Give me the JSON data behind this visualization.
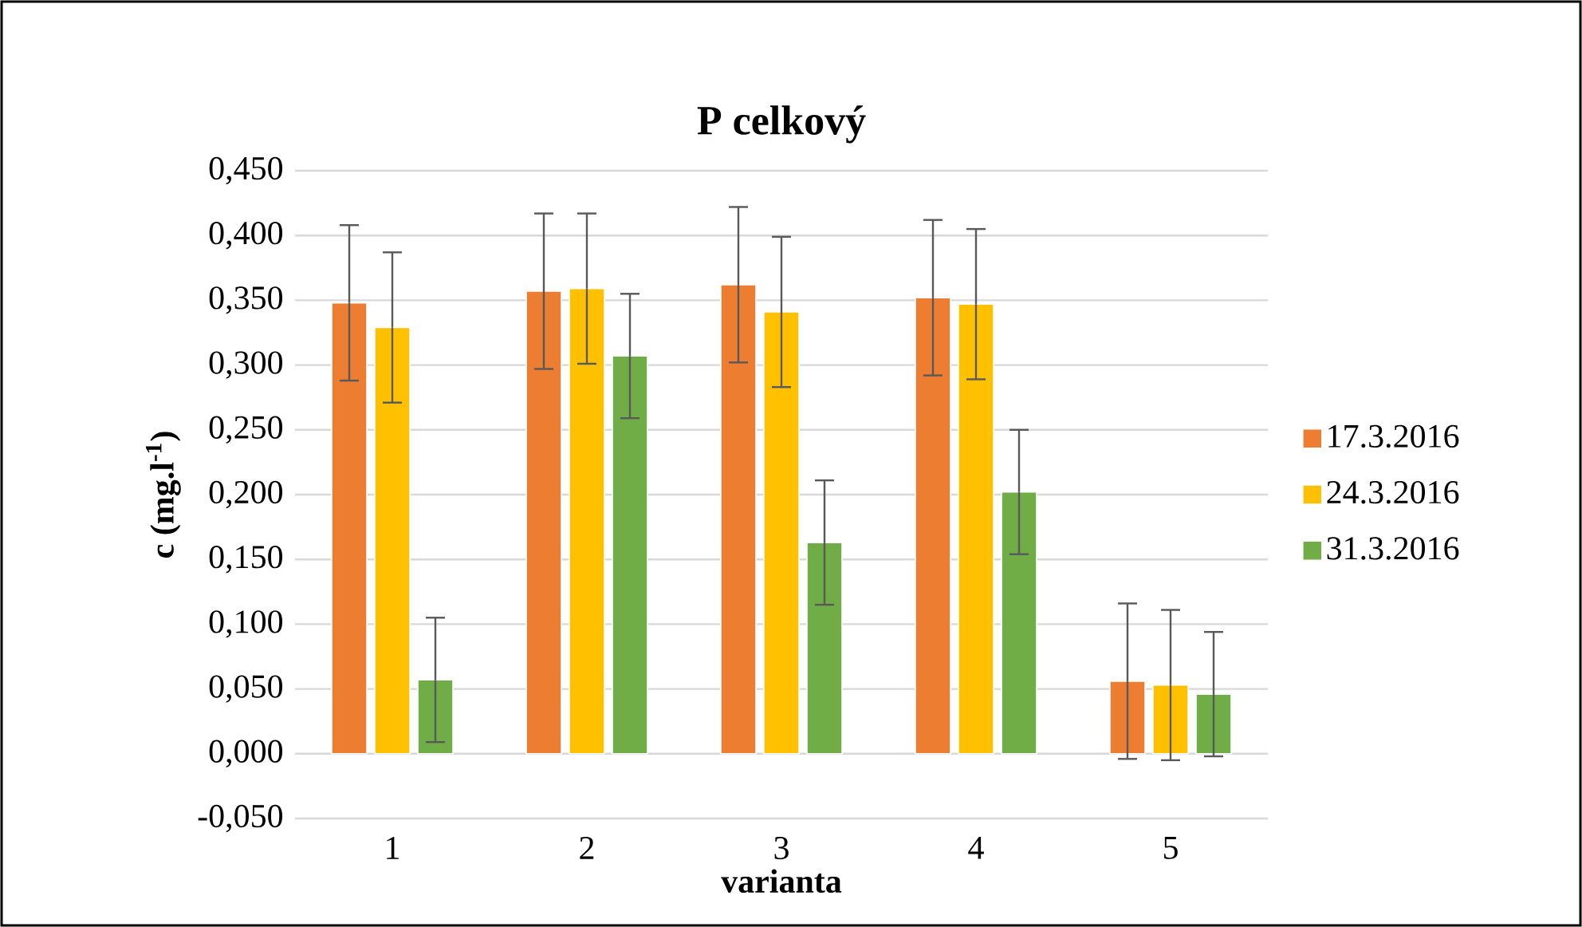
{
  "chart_data": {
    "type": "bar",
    "title": "P celkový",
    "xlabel": "varianta",
    "ylabel": "c (mg.l$^{-1}$)",
    "categories": [
      "1",
      "2",
      "3",
      "4",
      "5"
    ],
    "series": [
      {
        "name": "17.3.2016",
        "color": "#ed7d31",
        "values": [
          0.348,
          0.357,
          0.362,
          0.352,
          0.056
        ],
        "errors": [
          0.06,
          0.06,
          0.06,
          0.06,
          0.06
        ]
      },
      {
        "name": "24.3.2016",
        "color": "#ffc000",
        "values": [
          0.329,
          0.359,
          0.341,
          0.347,
          0.053
        ],
        "errors": [
          0.058,
          0.058,
          0.058,
          0.058,
          0.058
        ]
      },
      {
        "name": "31.3.2016",
        "color": "#70ad47",
        "values": [
          0.057,
          0.307,
          0.163,
          0.202,
          0.046
        ],
        "errors": [
          0.048,
          0.048,
          0.048,
          0.048,
          0.048
        ]
      }
    ],
    "ylim": [
      -0.05,
      0.45
    ],
    "yticks": [
      {
        "value": -0.05,
        "label": "-0,050"
      },
      {
        "value": 0,
        "label": "0,000"
      },
      {
        "value": 0.05,
        "label": "0,050"
      },
      {
        "value": 0.1,
        "label": "0,100"
      },
      {
        "value": 0.15,
        "label": "0,150"
      },
      {
        "value": 0.2,
        "label": "0,200"
      },
      {
        "value": 0.25,
        "label": "0,250"
      },
      {
        "value": 0.3,
        "label": "0,300"
      },
      {
        "value": 0.35,
        "label": "0,350"
      },
      {
        "value": 0.4,
        "label": "0,400"
      },
      {
        "value": 0.45,
        "label": "0,450"
      }
    ],
    "grid": "y",
    "legend": "right"
  }
}
